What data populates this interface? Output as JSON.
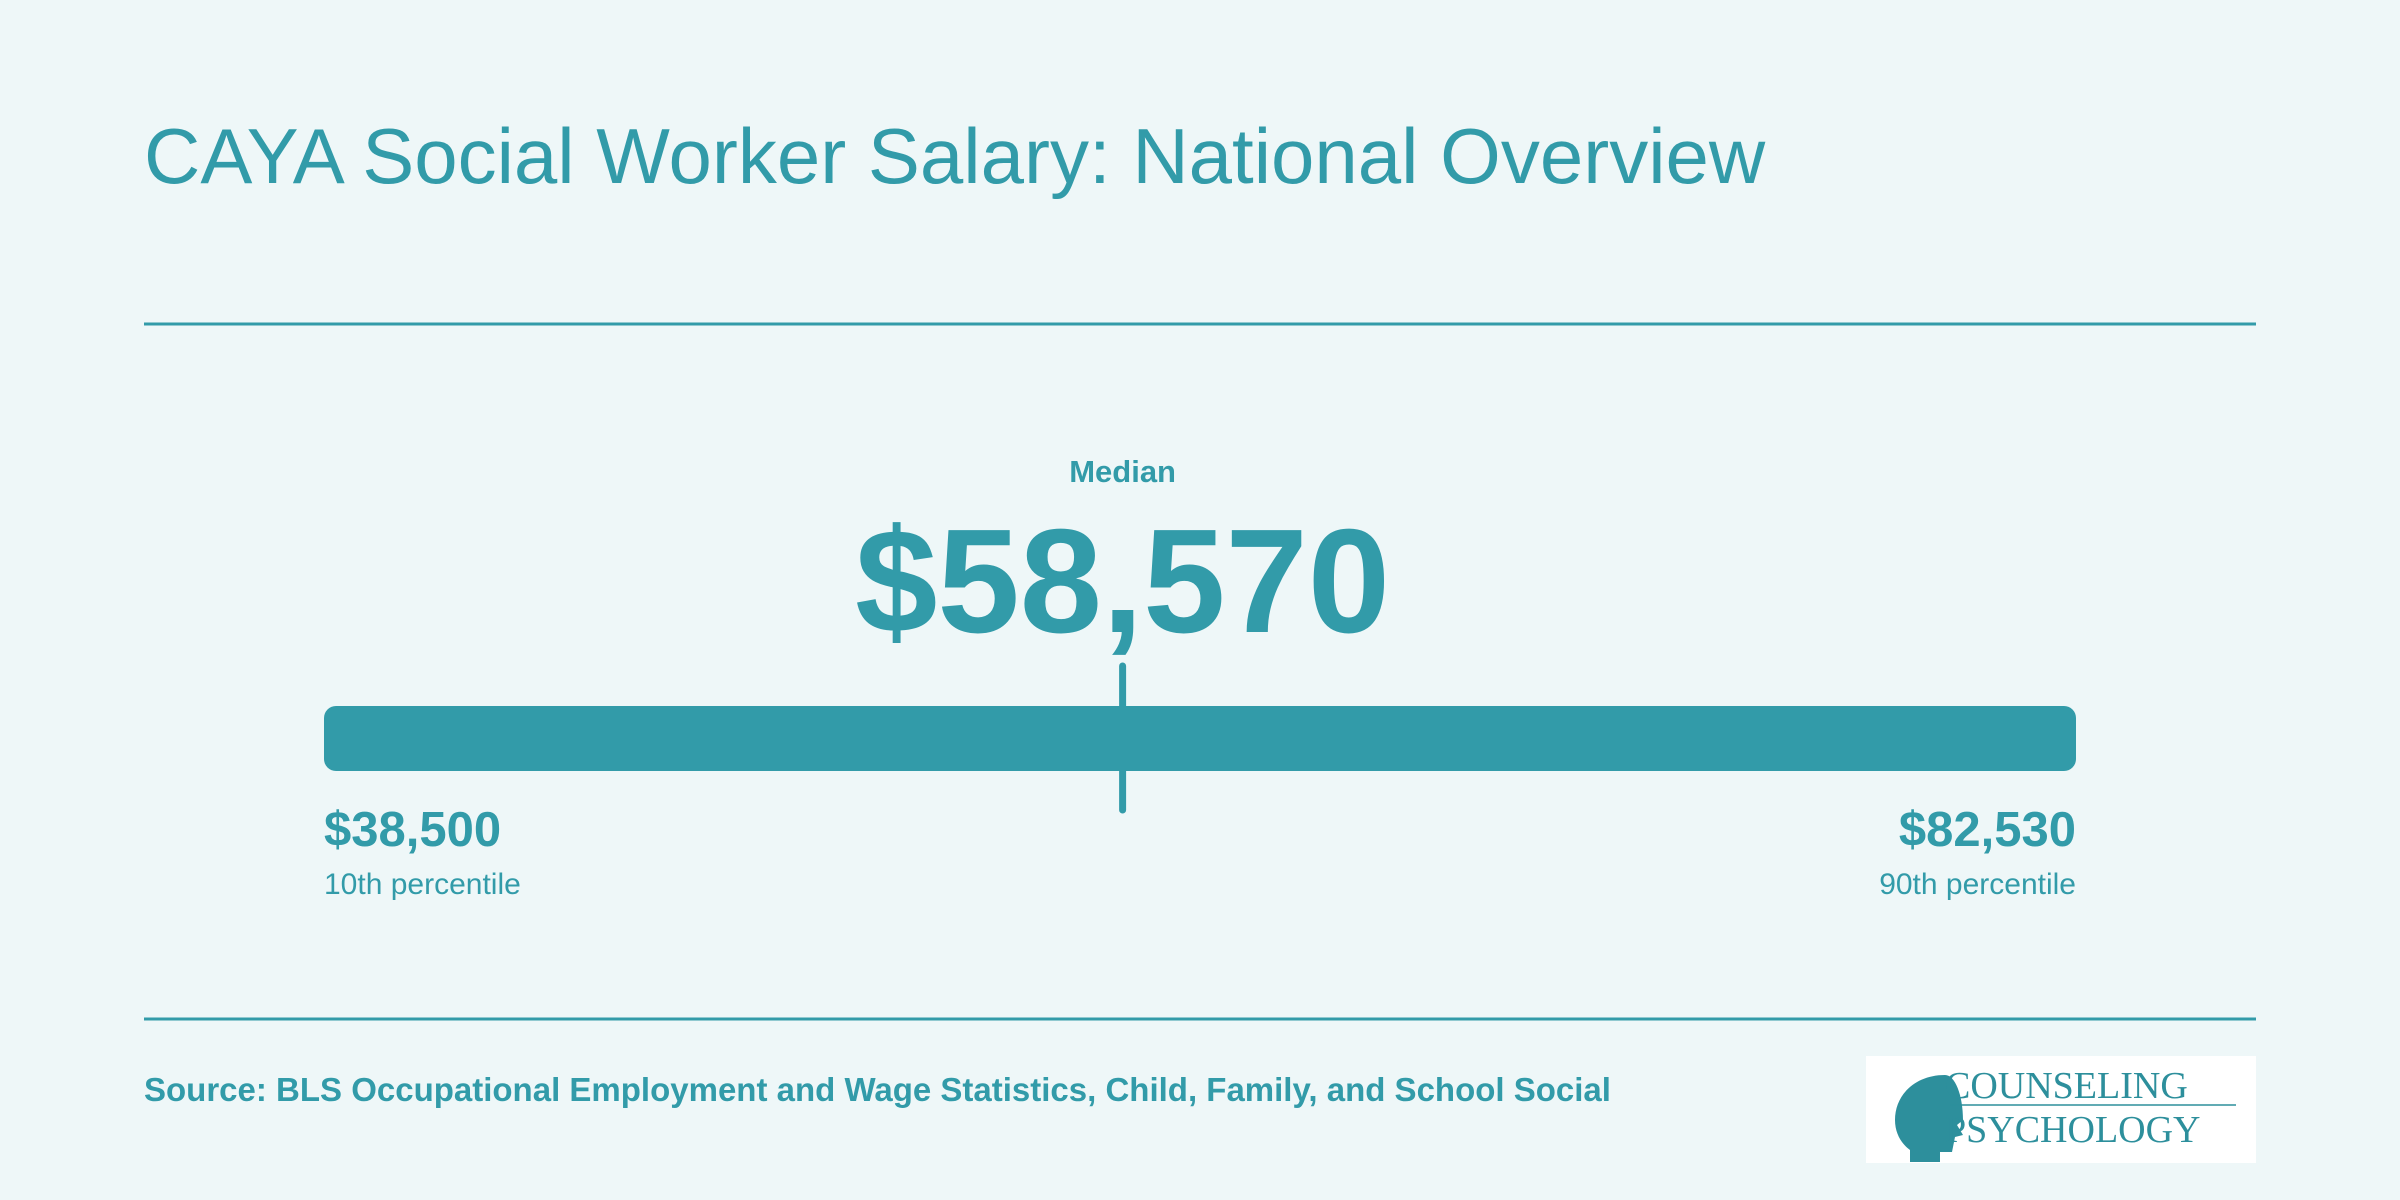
{
  "header": {
    "title": "CAYA Social Worker Salary: National Overview"
  },
  "range": {
    "median": {
      "caption": "Median",
      "value": 58570,
      "label": "$58,570"
    },
    "low": {
      "value": 38500,
      "label": "$38,500",
      "caption": "10th percentile"
    },
    "high": {
      "value": 82530,
      "label": "$82,530",
      "caption": "90th percentile"
    }
  },
  "footer": {
    "source": "Source: BLS Occupational Employment and Wage Statistics, Child, Family, and School Social",
    "logo": {
      "lines": [
        "COUNSELING",
        "PSYCHOLOGY"
      ]
    }
  }
}
